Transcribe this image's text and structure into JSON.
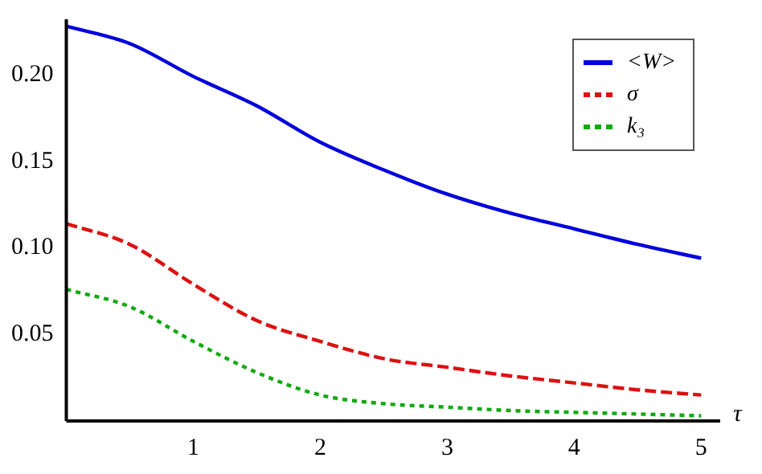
{
  "chart_data": {
    "type": "line",
    "xlabel": "τ",
    "x": [
      0,
      0.5,
      1,
      1.5,
      2,
      2.5,
      3,
      3.5,
      4,
      4.5,
      5
    ],
    "series": [
      {
        "name": "<W>",
        "color": "#0000dd",
        "line_style": "solid",
        "values": [
          0.228,
          0.218,
          0.199,
          0.182,
          0.161,
          0.145,
          0.131,
          0.12,
          0.111,
          0.102,
          0.094
        ]
      },
      {
        "name": "σ",
        "color": "#dd1111",
        "line_style": "dashed",
        "values": [
          0.114,
          0.102,
          0.079,
          0.058,
          0.046,
          0.036,
          0.031,
          0.026,
          0.022,
          0.018,
          0.015
        ]
      },
      {
        "name": "k₃",
        "color": "#11aa11",
        "line_style": "dotted",
        "values": [
          0.076,
          0.066,
          0.046,
          0.028,
          0.015,
          0.01,
          0.008,
          0.006,
          0.005,
          0.004,
          0.003
        ]
      }
    ],
    "xlim": [
      0,
      5.15
    ],
    "ylim": [
      0,
      0.232
    ],
    "xticks": [
      1,
      2,
      3,
      4,
      5
    ],
    "yticks": [
      {
        "value": 0.05,
        "label": "0.05"
      },
      {
        "value": 0.1,
        "label": "0.10"
      },
      {
        "value": 0.15,
        "label": "0.15"
      },
      {
        "value": 0.2,
        "label": "0.20"
      }
    ],
    "grid": false,
    "legend": "top right",
    "marker": "none"
  }
}
